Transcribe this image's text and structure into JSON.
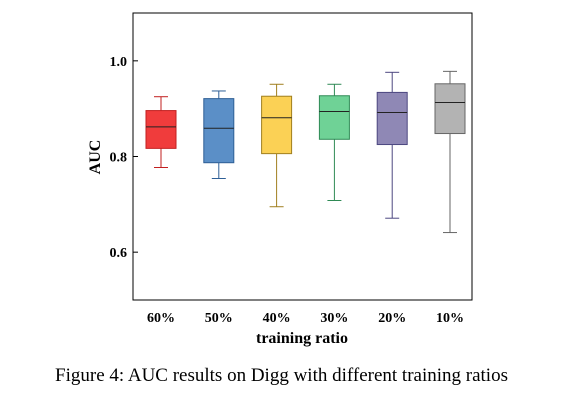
{
  "caption": "Figure 4: AUC results on Digg with different training ratios",
  "chart_data": {
    "type": "box",
    "xlabel": "training ratio",
    "ylabel": "AUC",
    "ylim": [
      0.5,
      1.1
    ],
    "yticks": [
      0.6,
      0.8,
      1.0
    ],
    "ytick_labels": [
      "0.6",
      "0.8",
      "1.0"
    ],
    "grid": false,
    "categories": [
      "60%",
      "50%",
      "40%",
      "30%",
      "20%",
      "10%"
    ],
    "boxes": [
      {
        "category": "60%",
        "whisker_low": 0.777,
        "q1": 0.817,
        "median": 0.862,
        "q3": 0.896,
        "whisker_high": 0.925,
        "color": "#f03c3c",
        "edge": "#c21f1f"
      },
      {
        "category": "50%",
        "whisker_low": 0.754,
        "q1": 0.787,
        "median": 0.859,
        "q3": 0.921,
        "whisker_high": 0.937,
        "color": "#5b8fc7",
        "edge": "#2e5f96"
      },
      {
        "category": "40%",
        "whisker_low": 0.695,
        "q1": 0.806,
        "median": 0.881,
        "q3": 0.926,
        "whisker_high": 0.951,
        "color": "#fbd155",
        "edge": "#a07f1f"
      },
      {
        "category": "30%",
        "whisker_low": 0.708,
        "q1": 0.836,
        "median": 0.894,
        "q3": 0.927,
        "whisker_high": 0.951,
        "color": "#6fd296",
        "edge": "#2f8a55"
      },
      {
        "category": "20%",
        "whisker_low": 0.671,
        "q1": 0.825,
        "median": 0.892,
        "q3": 0.934,
        "whisker_high": 0.976,
        "color": "#8f88b5",
        "edge": "#4c4780"
      },
      {
        "category": "10%",
        "whisker_low": 0.641,
        "q1": 0.848,
        "median": 0.913,
        "q3": 0.952,
        "whisker_high": 0.978,
        "color": "#b3b3b3",
        "edge": "#666666"
      }
    ]
  }
}
